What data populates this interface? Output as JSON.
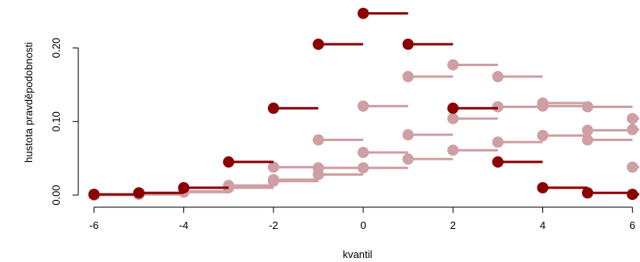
{
  "chart_data": {
    "type": "scatter",
    "title": "",
    "xlabel": "kvantil",
    "ylabel": "hustota pravděpodobnosti",
    "xlim": [
      -6.35,
      6.15
    ],
    "ylim": [
      0,
      0.252
    ],
    "x_ticks": [
      "-6",
      "-4",
      "-2",
      "0",
      "2",
      "4",
      "6"
    ],
    "y_ticks": [
      "0.00",
      "0.10",
      "0.20"
    ],
    "grid": false,
    "legend": "none",
    "colors": {
      "dark": "#8b0000",
      "light": "#ce9fa3"
    },
    "series": [
      {
        "style": "dark",
        "points": [
          {
            "x": -6,
            "y": 0.001
          },
          {
            "x": -5,
            "y": 0.003
          },
          {
            "x": -4,
            "y": 0.01
          },
          {
            "x": -3,
            "y": 0.045
          },
          {
            "x": -2,
            "y": 0.118
          },
          {
            "x": -1,
            "y": 0.205
          },
          {
            "x": 0,
            "y": 0.247
          },
          {
            "x": 1,
            "y": 0.205
          },
          {
            "x": 2,
            "y": 0.118
          },
          {
            "x": 3,
            "y": 0.045
          },
          {
            "x": 4,
            "y": 0.01
          },
          {
            "x": 5,
            "y": 0.003
          },
          {
            "x": 6,
            "y": 0.001
          }
        ]
      },
      {
        "style": "light",
        "points": [
          {
            "x": -6,
            "y": 0.0
          },
          {
            "x": -5,
            "y": 0.001
          },
          {
            "x": -4,
            "y": 0.005
          },
          {
            "x": -3,
            "y": 0.013
          },
          {
            "x": -2,
            "y": 0.038
          },
          {
            "x": -1,
            "y": 0.075
          },
          {
            "x": 0,
            "y": 0.121
          },
          {
            "x": 1,
            "y": 0.161
          },
          {
            "x": 2,
            "y": 0.177
          },
          {
            "x": 3,
            "y": 0.161
          },
          {
            "x": 4,
            "y": 0.121
          },
          {
            "x": 5,
            "y": 0.075
          },
          {
            "x": 6,
            "y": 0.038
          }
        ]
      },
      {
        "style": "light",
        "points": [
          {
            "x": -6,
            "y": 0.0
          },
          {
            "x": -5,
            "y": 0.001
          },
          {
            "x": -4,
            "y": 0.004
          },
          {
            "x": -3,
            "y": 0.01
          },
          {
            "x": -2,
            "y": 0.021
          },
          {
            "x": -1,
            "y": 0.037
          },
          {
            "x": 0,
            "y": 0.058
          },
          {
            "x": 1,
            "y": 0.082
          },
          {
            "x": 2,
            "y": 0.104
          },
          {
            "x": 3,
            "y": 0.12
          },
          {
            "x": 4,
            "y": 0.125
          },
          {
            "x": 5,
            "y": 0.12
          },
          {
            "x": 6,
            "y": 0.104
          }
        ]
      },
      {
        "style": "light",
        "points": [
          {
            "x": -6,
            "y": 0.0
          },
          {
            "x": -5,
            "y": 0.002
          },
          {
            "x": -4,
            "y": 0.005
          },
          {
            "x": -3,
            "y": 0.012
          },
          {
            "x": -2,
            "y": 0.019
          },
          {
            "x": -1,
            "y": 0.028
          },
          {
            "x": 0,
            "y": 0.037
          },
          {
            "x": 1,
            "y": 0.049
          },
          {
            "x": 2,
            "y": 0.061
          },
          {
            "x": 3,
            "y": 0.072
          },
          {
            "x": 4,
            "y": 0.081
          },
          {
            "x": 5,
            "y": 0.088
          },
          {
            "x": 6,
            "y": 0.089
          }
        ]
      }
    ]
  }
}
